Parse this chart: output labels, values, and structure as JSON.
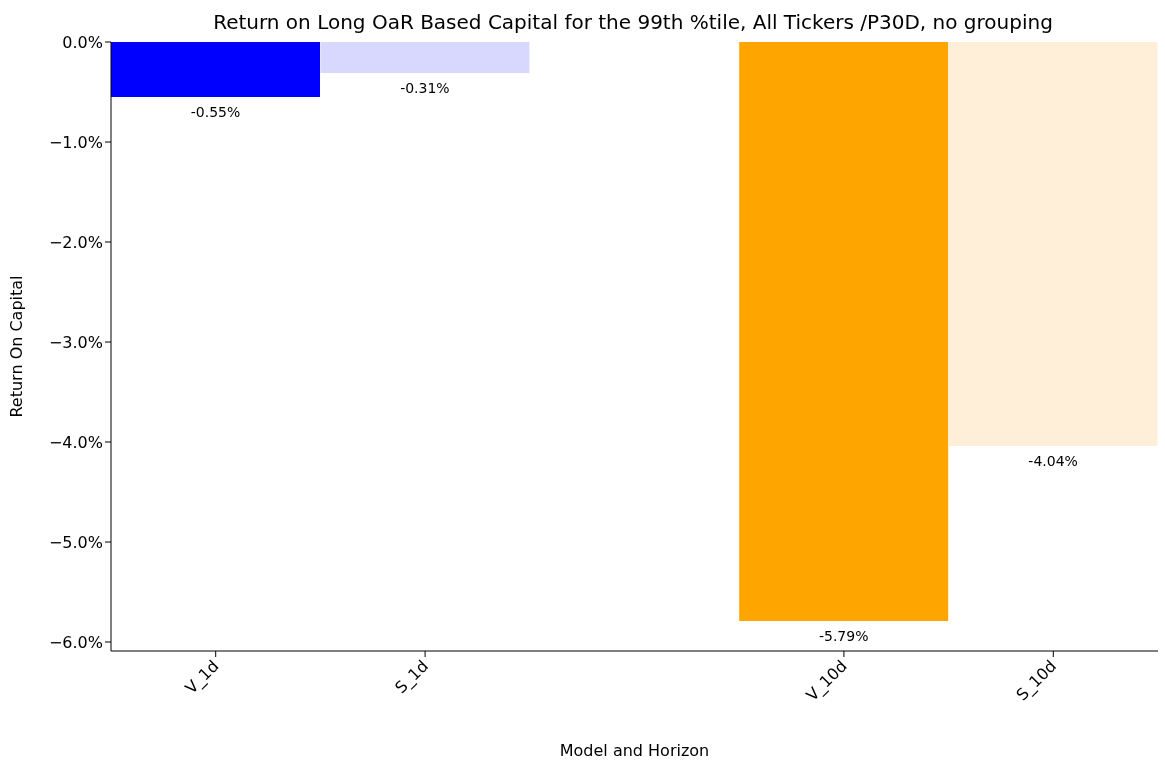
{
  "chart_data": {
    "type": "bar",
    "title": "Return on Long OaR Based Capital for the 99th %tile, All Tickers /P30D, no grouping",
    "xlabel": "Model and Horizon",
    "ylabel": "Return On Capital",
    "categories": [
      "V_1d",
      "S_1d",
      null,
      "V_10d",
      "S_10d"
    ],
    "values": [
      -0.55,
      -0.31,
      null,
      -5.79,
      -4.04
    ],
    "colors": [
      "#0000ff",
      "#d8d8ff",
      null,
      "#ffa500",
      "#ffefd9"
    ],
    "value_labels": [
      "-0.55%",
      "-0.31%",
      null,
      "-5.79%",
      "-4.04%"
    ],
    "ylim": [
      -6.09,
      0
    ],
    "yticks": [
      {
        "value": 0,
        "label": "0.0%"
      },
      {
        "value": -1,
        "label": "−1.0%"
      },
      {
        "value": -2,
        "label": "−2.0%"
      },
      {
        "value": -3,
        "label": "−3.0%"
      },
      {
        "value": -4,
        "label": "−4.0%"
      },
      {
        "value": -5,
        "label": "−5.0%"
      },
      {
        "value": -6,
        "label": "−6.0%"
      }
    ],
    "grid": false,
    "legend": false
  }
}
